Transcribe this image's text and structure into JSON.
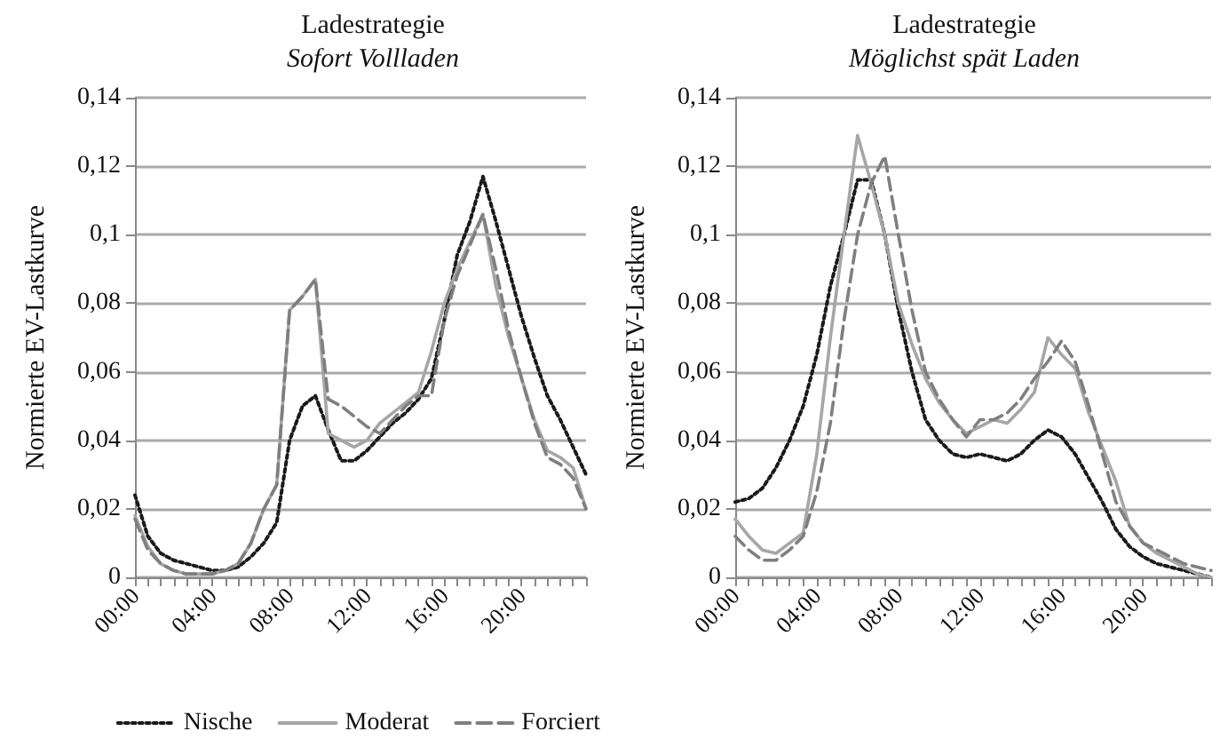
{
  "chart_data": [
    {
      "type": "line",
      "title": "Ladestrategie",
      "subtitle": "Sofort Vollladen",
      "ylabel": "Normierte EV-Lastkurve",
      "legend": "bottom",
      "grid": "y",
      "categories": [
        "00:00",
        null,
        null,
        null,
        null,
        null,
        "04:00",
        null,
        null,
        null,
        null,
        null,
        "08:00",
        null,
        null,
        null,
        null,
        null,
        "12:00",
        null,
        null,
        null,
        null,
        null,
        "16:00",
        null,
        null,
        null,
        null,
        null,
        "20:00",
        null,
        null,
        null,
        null,
        null
      ],
      "ylim": [
        0,
        0.14
      ],
      "yticks": [
        {
          "value": 0,
          "label": "0"
        },
        {
          "value": 0.02,
          "label": "0,02"
        },
        {
          "value": 0.04,
          "label": "0,04"
        },
        {
          "value": 0.06,
          "label": "0,06"
        },
        {
          "value": 0.08,
          "label": "0,08"
        },
        {
          "value": 0.1,
          "label": "0,1"
        },
        {
          "value": 0.12,
          "label": "0,12"
        },
        {
          "value": 0.14,
          "label": "0,14"
        }
      ],
      "series": [
        {
          "name": "Nische",
          "color": "#1a1a1a",
          "line_style": "dotted",
          "values": [
            0.024,
            0.012,
            0.007,
            0.005,
            0.004,
            0.003,
            0.002,
            0.002,
            0.003,
            0.006,
            0.01,
            0.016,
            0.04,
            0.05,
            0.053,
            0.043,
            0.034,
            0.034,
            0.037,
            0.041,
            0.045,
            0.048,
            0.052,
            0.058,
            0.075,
            0.094,
            0.104,
            0.117,
            0.104,
            0.09,
            0.076,
            0.064,
            0.053,
            0.046,
            0.038,
            0.03
          ]
        },
        {
          "name": "Moderat",
          "color": "#a6a6a6",
          "line_style": "solid",
          "values": [
            0.018,
            0.009,
            0.004,
            0.002,
            0.001,
            0.001,
            0.001,
            0.002,
            0.004,
            0.01,
            0.02,
            0.027,
            0.078,
            0.082,
            0.087,
            0.042,
            0.04,
            0.038,
            0.04,
            0.045,
            0.048,
            0.051,
            0.054,
            0.066,
            0.08,
            0.09,
            0.098,
            0.106,
            0.085,
            0.07,
            0.058,
            0.046,
            0.037,
            0.035,
            0.032,
            0.02
          ]
        },
        {
          "name": "Forciert",
          "color": "#7f7f7f",
          "line_style": "dashed",
          "values": [
            0.017,
            0.008,
            0.004,
            0.002,
            0.001,
            0.001,
            0.001,
            0.002,
            0.004,
            0.01,
            0.02,
            0.027,
            0.078,
            0.082,
            0.087,
            0.052,
            0.05,
            0.047,
            0.044,
            0.042,
            0.046,
            0.05,
            0.053,
            0.053,
            0.075,
            0.088,
            0.097,
            0.106,
            0.09,
            0.072,
            0.058,
            0.045,
            0.035,
            0.033,
            0.029,
            0.02
          ]
        }
      ]
    },
    {
      "type": "line",
      "title": "Ladestrategie",
      "subtitle": "Möglichst spät Laden",
      "ylabel": "Normierte EV-Lastkurve",
      "grid": "y",
      "categories": [
        "00:00",
        null,
        null,
        null,
        null,
        null,
        "04:00",
        null,
        null,
        null,
        null,
        null,
        "08:00",
        null,
        null,
        null,
        null,
        null,
        "12:00",
        null,
        null,
        null,
        null,
        null,
        "16:00",
        null,
        null,
        null,
        null,
        null,
        "20:00",
        null,
        null,
        null,
        null,
        null
      ],
      "ylim": [
        0,
        0.14
      ],
      "yticks": [
        {
          "value": 0,
          "label": "0"
        },
        {
          "value": 0.02,
          "label": "0,02"
        },
        {
          "value": 0.04,
          "label": "0,04"
        },
        {
          "value": 0.06,
          "label": "0,06"
        },
        {
          "value": 0.08,
          "label": "0,08"
        },
        {
          "value": 0.1,
          "label": "0,1"
        },
        {
          "value": 0.12,
          "label": "0,12"
        },
        {
          "value": 0.14,
          "label": "0,14"
        }
      ],
      "series": [
        {
          "color": "#1a1a1a",
          "line_style": "dotted",
          "values": [
            0.022,
            0.023,
            0.026,
            0.032,
            0.04,
            0.05,
            0.065,
            0.085,
            0.1,
            0.116,
            0.116,
            0.1,
            0.078,
            0.06,
            0.046,
            0.04,
            0.036,
            0.035,
            0.036,
            0.035,
            0.034,
            0.036,
            0.04,
            0.043,
            0.041,
            0.036,
            0.029,
            0.022,
            0.014,
            0.009,
            0.006,
            0.004,
            0.003,
            0.002,
            0.001,
            0
          ]
        },
        {
          "color": "#a6a6a6",
          "line_style": "solid",
          "values": [
            0.017,
            0.012,
            0.008,
            0.007,
            0.01,
            0.013,
            0.036,
            0.07,
            0.1,
            0.129,
            0.115,
            0.1,
            0.08,
            0.068,
            0.058,
            0.051,
            0.046,
            0.042,
            0.044,
            0.046,
            0.045,
            0.049,
            0.054,
            0.07,
            0.065,
            0.061,
            0.048,
            0.038,
            0.028,
            0.015,
            0.01,
            0.007,
            0.005,
            0.003,
            0.001,
            0
          ]
        },
        {
          "color": "#7f7f7f",
          "line_style": "dashed",
          "values": [
            0.012,
            0.008,
            0.005,
            0.005,
            0.008,
            0.012,
            0.025,
            0.045,
            0.075,
            0.1,
            0.115,
            0.123,
            0.1,
            0.078,
            0.06,
            0.052,
            0.046,
            0.041,
            0.046,
            0.046,
            0.048,
            0.052,
            0.058,
            0.063,
            0.069,
            0.063,
            0.05,
            0.036,
            0.022,
            0.015,
            0.01,
            0.008,
            0.006,
            0.004,
            0.003,
            0.002
          ]
        }
      ]
    }
  ]
}
